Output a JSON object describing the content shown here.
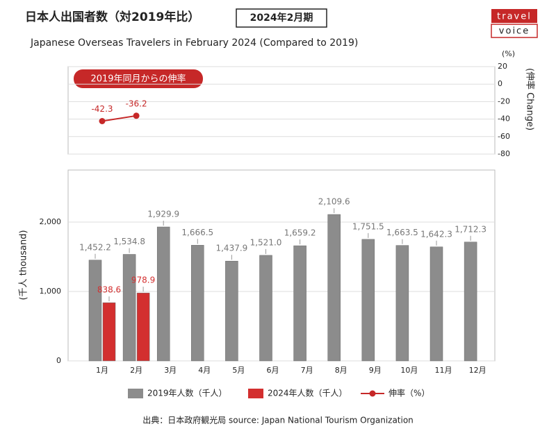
{
  "chart_data": {
    "type": "bar",
    "title": "日本人出国者数（対2019年比）",
    "period_label": "2024年2月期",
    "brand": [
      "travel",
      "voice"
    ],
    "subtitle": "Japanese Overseas Travelers in February 2024 (Compared to 2019)",
    "annotation": "2019年同月からの伸率",
    "ylabel": "(千人 thousand)",
    "y2label": "(伸率 Change)",
    "y2unit": "(%)",
    "source": "出典：日本政府観光局  source: Japan National Tourism Organization",
    "categories": [
      "1月",
      "2月",
      "3月",
      "4月",
      "5月",
      "6月",
      "7月",
      "8月",
      "9月",
      "10月",
      "11月",
      "12月"
    ],
    "series": [
      {
        "name": "2019年人数（千人）",
        "color": "#8c8c8c",
        "values": [
          1452.2,
          1534.8,
          1929.9,
          1666.5,
          1437.9,
          1521.0,
          1659.2,
          2109.6,
          1751.5,
          1663.5,
          1642.3,
          1712.3
        ],
        "value_labels": [
          "1,452.2",
          "1,534.8",
          "1,929.9",
          "1,666.5",
          "1,437.9",
          "1,521.0",
          "1,659.2",
          "2,109.6",
          "1,751.5",
          "1,663.5",
          "1,642.3",
          "1,712.3"
        ]
      },
      {
        "name": "2024年人数（千人）",
        "color": "#d32f2f",
        "values": [
          838.6,
          978.9,
          null,
          null,
          null,
          null,
          null,
          null,
          null,
          null,
          null,
          null
        ]
      },
      {
        "name": "伸率（%）",
        "color": "#c62828",
        "axis": "y2",
        "values": [
          -42.3,
          -36.2,
          null,
          null,
          null,
          null,
          null,
          null,
          null,
          null,
          null,
          null
        ]
      }
    ],
    "ylim": [
      0,
      2750
    ],
    "yticks": [
      0,
      {
        "value": 1000,
        "label": "1,000"
      },
      {
        "value": 2000,
        "label": "2,000"
      }
    ],
    "y2lim": [
      -80,
      20
    ],
    "y2ticks": [
      20,
      0,
      -20,
      -40,
      -60,
      -80
    ],
    "grid": true
  }
}
